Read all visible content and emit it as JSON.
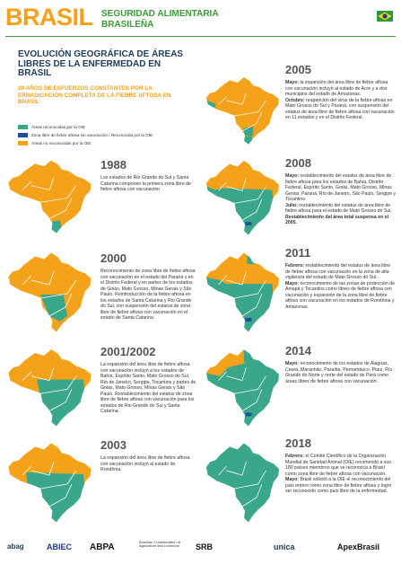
{
  "header": {
    "brand": "BRASIL",
    "subtitle_line1": "SEGURIDAD ALIMENTARIA",
    "subtitle_line2": "BRASILEÑA"
  },
  "title": "EVOLUCIÓN GEOGRÁFICA DE ÁREAS LIBRES DE LA ENFERMEDAD EN BRASIL",
  "subtitle": "20 AÑOS DE ESFUERZOS CONSTANTES POR LA ERRADICACIÓN COMPLETA DE LA FIEBRE AFTOSA EN BRASIL",
  "legend": [
    {
      "label": "Áreas reconocidas por la OIE",
      "color": "#3aa78a"
    },
    {
      "label": "Zona libre de fiebre aftosa sin vacunación / Reconocida por la OIE",
      "color": "#1d4f9c"
    },
    {
      "label": "Áreas no reconocidas por la OIE",
      "color": "#f5a21b"
    }
  ],
  "entries": [
    {
      "year": "1988",
      "paragraphs": [
        {
          "text": "Los estados de Rio Grande do Sul y Santa Catarina componen la primera zona libre de fiebre aftosa con vacunación"
        }
      ]
    },
    {
      "year": "2000",
      "paragraphs": [
        {
          "text": "Reconocimiento de zona libre de fiebre aftosa con vacunación en el estado del Paraná y en el Distrito Federal y en partes de los estados de Goiás, Mato Grosso, Minas Gerais y São Paulo. Reintroducción de la fiebre aftosa en los estados de Santa Catarina y Rio Grande do Sul, con suspensión del estatus de zona libre de fiebre aftosa con vacunación en el estado de Santa Catarina."
        }
      ]
    },
    {
      "year": "2001/2002",
      "paragraphs": [
        {
          "text": "La expansión del área libre de fiebre aftosa con vacunación incluyó a los estados de Bahía, Espírito Santo, Mato Grosso do Sul, Río de Janeiro, Sergipe, Tocantins y partes de Goiás, Mato Grosso, Minas Gerais y São Paulo. Restablecimiento del estatus de zona libre de fiebre aftosa con vacunación para los estados de Rio Grande do Sul y Santa Catarina."
        }
      ]
    },
    {
      "year": "2003",
      "paragraphs": [
        {
          "text": "La expansión del área libre de fiebre aftosa con vacunación incluyó al estado de Rondônia."
        }
      ]
    },
    {
      "year": "2005",
      "paragraphs": [
        {
          "label": "Mayo:",
          "text": "la expansión del área libre de fiebre aftosa con vacunación incluyó al estado de Acre y a dos municipios del estado de Amazonas."
        },
        {
          "label": "Octubre:",
          "text": "reaparición del virus de la fiebre aftosa en Mato Grosso do Sul y Paraná, con suspensión del estatus de área libre de fiebre aftosa con vacunación en 11 estados y en el Distrito Federal."
        }
      ]
    },
    {
      "year": "2008",
      "paragraphs": [
        {
          "label": "Mayo:",
          "text": "restablecimiento del estatus de área libre de fiebre aftosa para los estados de Bahía, Distrito Federal, Espírito Santo, Goiás, Mato Grosso, Minas Gerais, Paraná, Río de Janeiro, São Paulo, Sergipe y Tocantins."
        },
        {
          "label": "Julio:",
          "text": "restablecimiento del estatus de área libre de fiebre aftosa para el estado de Mato Grosso do Sul."
        },
        {
          "highlight": "Restablecimiento del área total suspensa en el 2005."
        }
      ]
    },
    {
      "year": "2011",
      "paragraphs": [
        {
          "label": "Febrero:",
          "text": "restablecimiento del estatus de área libre de fiebre aftosa con vacunación en la zona de alta vigilancia del estado de Mato Grosso do Sul."
        },
        {
          "label": "Mayo:",
          "text": "reconocimiento de las zonas de protección de Amapá y Tocantins como libres de fiebre aftosa con vacunación y expansión de la zona libre de fiebre aftosa con vacunación en los estados de Rondônia y Amazonas."
        }
      ]
    },
    {
      "year": "2014",
      "paragraphs": [
        {
          "label": "Mayo:",
          "text": "reconocimiento de los estados de Alagoas, Ceará, Maranhão, Paraíba, Pernambuco, Piauí, Río Grande do Norte y norte del estado de Pará como áreas libres de fiebre aftosa con vacunación."
        }
      ]
    },
    {
      "year": "2018",
      "paragraphs": [
        {
          "label": "Febrero:",
          "text": "el Comité Científico de la Organización Mundial de Sanidad Animal (OIE) recomendó a sus 180 países miembros que se reconozca a Brasil como zona libre de fiebre aftosa con vacunación."
        },
        {
          "label": "Mayo:",
          "text": "Brasil solicitó a la OIE el reconocimiento del país entero como zona libre de fiebre aftosa y logró ser reconocido como país libre de la enfermedad."
        }
      ]
    }
  ],
  "logos": [
    "abag",
    "ABIEC",
    "ABPA",
    "Brazilian Confederation of Agriculture and Livestock",
    "SRB",
    "unica",
    "ApexBrasil"
  ]
}
